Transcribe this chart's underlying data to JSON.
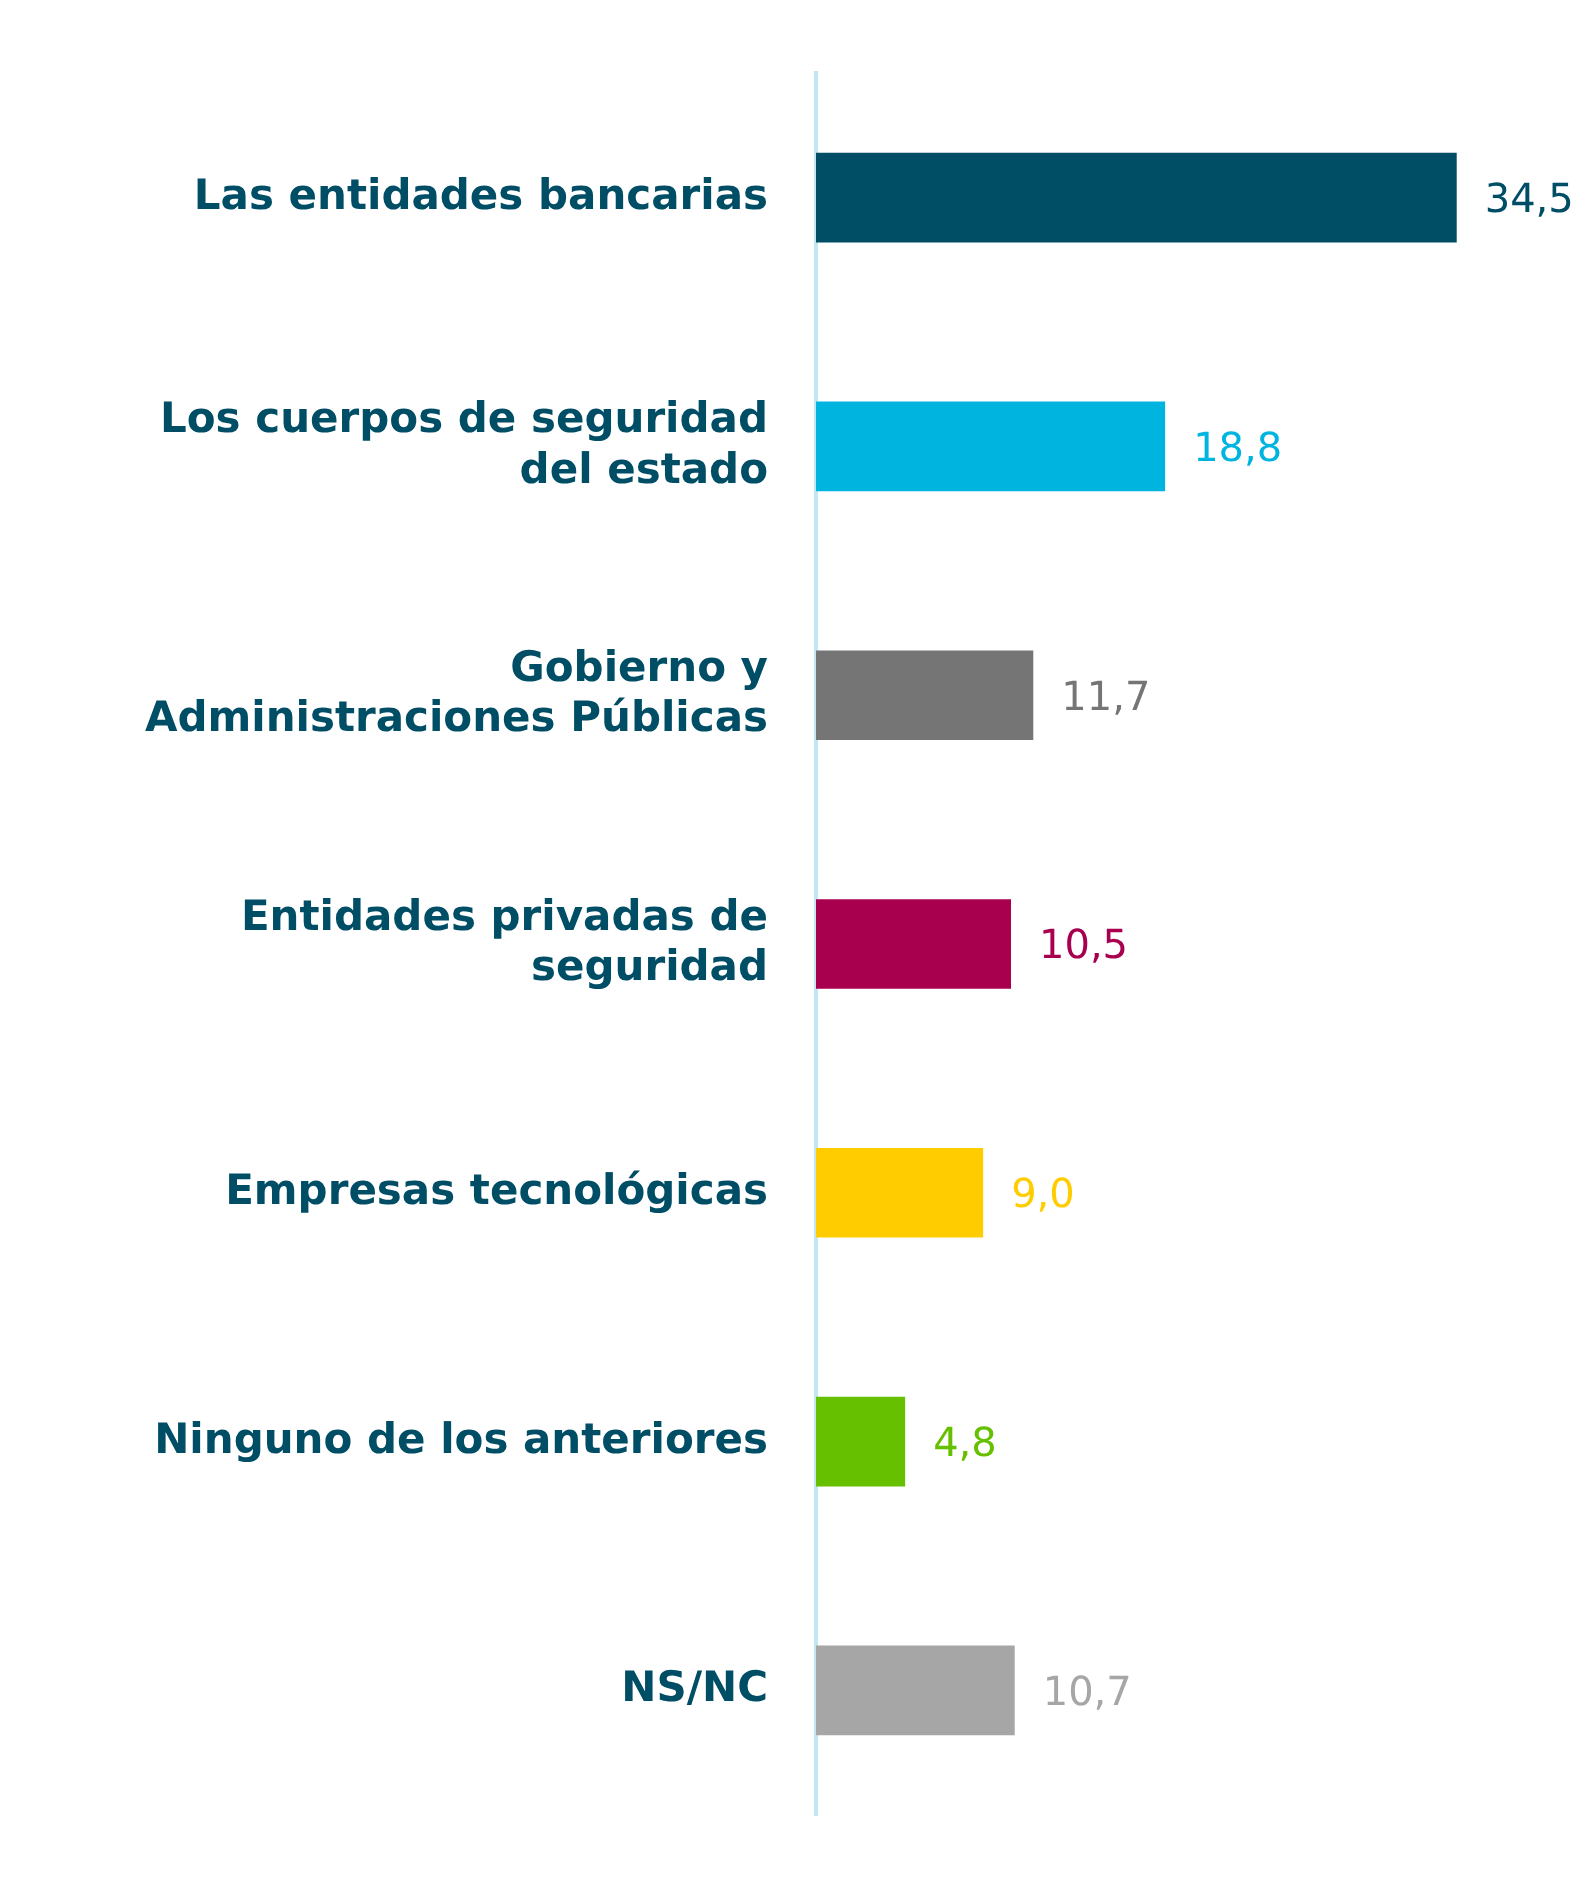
{
  "chart_data": {
    "type": "bar",
    "orientation": "horizontal",
    "categories": [
      "Las entidades bancarias",
      "Los cuerpos de seguridad del estado",
      "Gobierno y Administraciones Públicas",
      "Entidades privadas de seguridad",
      "Empresas tecnológicas",
      "Ninguno de los anteriores",
      "NS/NC"
    ],
    "values": [
      34.5,
      18.8,
      11.7,
      10.5,
      9.0,
      4.8,
      10.7
    ],
    "value_labels": [
      "34,5",
      "18,8",
      "11,7",
      "10,5",
      "9,0",
      "4,8",
      "10,7"
    ],
    "colors": [
      "#004d66",
      "#00b4e0",
      "#757575",
      "#a8004f",
      "#ffcc00",
      "#66c000",
      "#a6a6a6"
    ],
    "tick_labels": "y",
    "grid": false,
    "legend": false
  }
}
